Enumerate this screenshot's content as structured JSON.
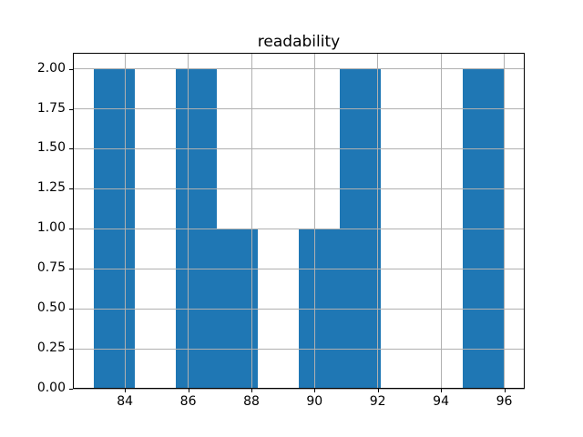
{
  "chart_data": {
    "type": "bar",
    "subtype": "histogram",
    "title": "readability",
    "xlabel": "",
    "ylabel": "",
    "bin_edges": [
      83.0,
      84.3,
      85.6,
      86.9,
      88.2,
      89.5,
      90.8,
      92.1,
      93.4,
      94.7,
      96.0
    ],
    "counts": [
      2,
      0,
      2,
      1,
      0,
      1,
      2,
      0,
      0,
      2
    ],
    "xlim": [
      82.35,
      96.65
    ],
    "ylim": [
      0,
      2.1
    ],
    "x_ticks": [
      {
        "value": 84,
        "label": "84"
      },
      {
        "value": 86,
        "label": "86"
      },
      {
        "value": 88,
        "label": "88"
      },
      {
        "value": 90,
        "label": "90"
      },
      {
        "value": 92,
        "label": "92"
      },
      {
        "value": 94,
        "label": "94"
      },
      {
        "value": 96,
        "label": "96"
      }
    ],
    "y_ticks": [
      {
        "value": 0.0,
        "label": "0.00"
      },
      {
        "value": 0.25,
        "label": "0.25"
      },
      {
        "value": 0.5,
        "label": "0.50"
      },
      {
        "value": 0.75,
        "label": "0.75"
      },
      {
        "value": 1.0,
        "label": "1.00"
      },
      {
        "value": 1.25,
        "label": "1.25"
      },
      {
        "value": 1.5,
        "label": "1.50"
      },
      {
        "value": 1.75,
        "label": "1.75"
      },
      {
        "value": 2.0,
        "label": "2.00"
      }
    ],
    "grid": true,
    "legend_visible": false,
    "colors": {
      "bar": "#1f77b4",
      "grid": "#b0b0b0",
      "spine": "#000000",
      "text": "#000000",
      "background": "#ffffff"
    }
  }
}
